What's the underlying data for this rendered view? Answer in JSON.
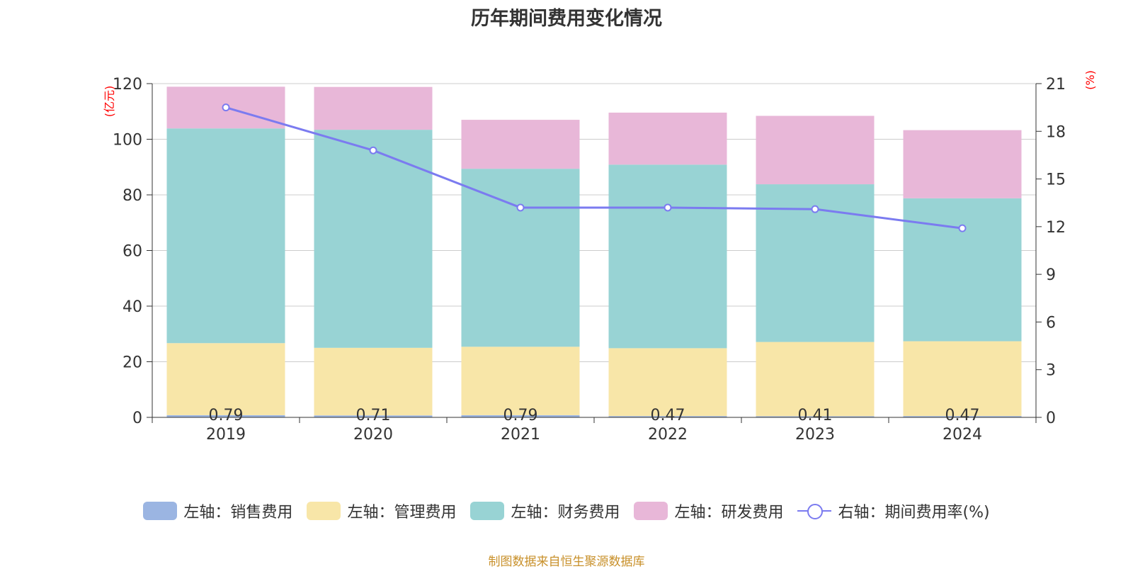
{
  "chart_data": {
    "type": "bar",
    "stacked": true,
    "title": "历年期间费用变化情况",
    "categories": [
      "2019",
      "2020",
      "2021",
      "2022",
      "2023",
      "2024"
    ],
    "series": [
      {
        "name": "左轴：销售费用",
        "axis": "left",
        "color": "#9bb5e2",
        "values": [
          0.79,
          0.71,
          0.79,
          0.47,
          0.41,
          0.47
        ],
        "labels": [
          "0.79",
          "0.71",
          "0.79",
          "0.47",
          "0.41",
          "0.47"
        ]
      },
      {
        "name": "左轴：管理费用",
        "axis": "left",
        "color": "#f8e6a8",
        "values": [
          25.9,
          24.3,
          24.6,
          24.4,
          26.7,
          26.9
        ]
      },
      {
        "name": "左轴：财务费用",
        "axis": "left",
        "color": "#98d3d4",
        "values": [
          77.2,
          78.4,
          64.0,
          66.0,
          56.7,
          51.4
        ]
      },
      {
        "name": "左轴：研发费用",
        "axis": "left",
        "color": "#e8b7d8",
        "values": [
          15.0,
          15.4,
          17.6,
          18.7,
          24.6,
          24.5
        ]
      },
      {
        "name": "右轴：期间费用率(%)",
        "axis": "right",
        "type": "line",
        "color": "#7b7bf0",
        "values": [
          19.5,
          16.8,
          13.2,
          13.2,
          13.1,
          11.9
        ]
      }
    ],
    "y_left": {
      "label": "(亿元)",
      "range": [
        0,
        120
      ],
      "ticks": [
        0,
        20,
        40,
        60,
        80,
        100,
        120
      ],
      "tick_labels": [
        "0",
        "20",
        "40",
        "60",
        "80",
        "100",
        "120"
      ]
    },
    "y_right": {
      "label": "(%)",
      "range": [
        0,
        21
      ],
      "ticks": [
        0,
        3,
        6,
        9,
        12,
        15,
        18,
        21
      ],
      "tick_labels": [
        "0",
        "3",
        "6",
        "9",
        "12",
        "15",
        "18",
        "21"
      ]
    },
    "grid": true,
    "legend_position": "bottom"
  },
  "source_note": "制图数据来自恒生聚源数据库",
  "axis_color": "#333333",
  "grid_color": "#cccccc",
  "unit_color": "#ff0000",
  "note_color": "#c8902a"
}
